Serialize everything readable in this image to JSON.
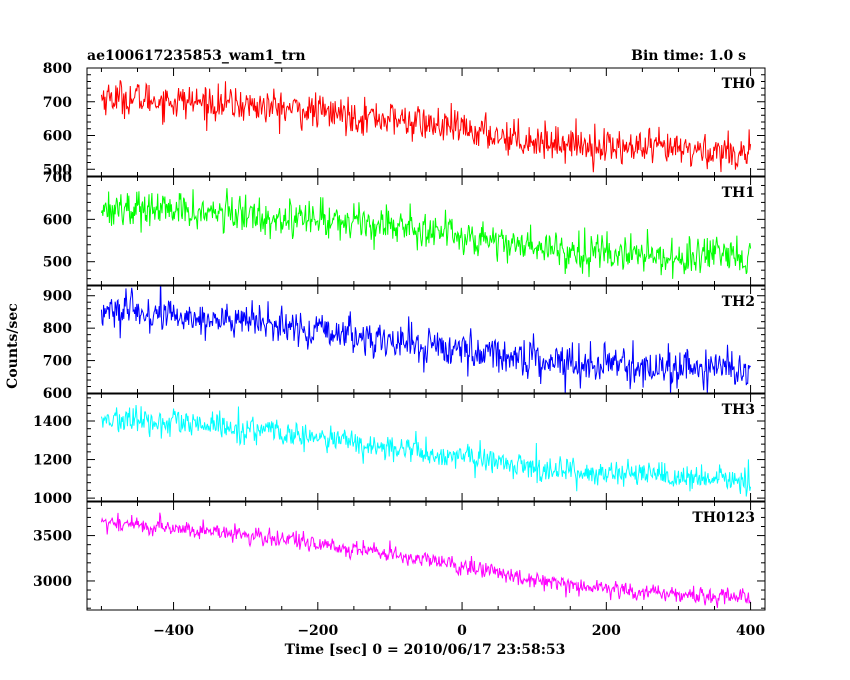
{
  "chart_data": {
    "type": "line",
    "title": "ae100617235853_wam1_trn",
    "subtitle": "Bin time: 1.0 s",
    "xlabel": "Time [sec] 0 = 2010/06/17 23:58:53",
    "ylabel": "Counts/sec",
    "xlim": [
      -520,
      420
    ],
    "xticks": [
      -400,
      -200,
      0,
      200,
      400
    ],
    "x_data_range": [
      -500,
      400
    ],
    "bin": 1.0,
    "grid": false,
    "panels": [
      {
        "name": "TH0",
        "color": "#ff0000",
        "ylim": [
          480,
          800
        ],
        "yticks": [
          500,
          600,
          700,
          800
        ],
        "trend": [
          {
            "x": -500,
            "y": 715
          },
          {
            "x": -300,
            "y": 690
          },
          {
            "x": -100,
            "y": 650
          },
          {
            "x": 100,
            "y": 585
          },
          {
            "x": 250,
            "y": 560
          },
          {
            "x": 400,
            "y": 550
          }
        ],
        "noise": 30
      },
      {
        "name": "TH1",
        "color": "#00ff00",
        "ylim": [
          445,
          700
        ],
        "yticks": [
          500,
          600,
          700
        ],
        "trend": [
          {
            "x": -500,
            "y": 630
          },
          {
            "x": -300,
            "y": 610
          },
          {
            "x": -100,
            "y": 590
          },
          {
            "x": 100,
            "y": 535
          },
          {
            "x": 250,
            "y": 515
          },
          {
            "x": 400,
            "y": 505
          }
        ],
        "noise": 25
      },
      {
        "name": "TH2",
        "color": "#0000ff",
        "ylim": [
          600,
          930
        ],
        "yticks": [
          600,
          700,
          800,
          900
        ],
        "trend": [
          {
            "x": -500,
            "y": 855
          },
          {
            "x": -300,
            "y": 820
          },
          {
            "x": -100,
            "y": 760
          },
          {
            "x": 100,
            "y": 705
          },
          {
            "x": 250,
            "y": 680
          },
          {
            "x": 400,
            "y": 670
          }
        ],
        "noise": 32
      },
      {
        "name": "TH3",
        "color": "#00ffff",
        "ylim": [
          985,
          1540
        ],
        "yticks": [
          1000,
          1200,
          1400
        ],
        "trend": [
          {
            "x": -500,
            "y": 1410
          },
          {
            "x": -300,
            "y": 1360
          },
          {
            "x": -100,
            "y": 1260
          },
          {
            "x": 100,
            "y": 1160
          },
          {
            "x": 250,
            "y": 1110
          },
          {
            "x": 400,
            "y": 1090
          }
        ],
        "noise": 40
      },
      {
        "name": "TH0123",
        "color": "#ff00ff",
        "ylim": [
          2680,
          3870
        ],
        "yticks": [
          3000,
          3500
        ],
        "trend": [
          {
            "x": -500,
            "y": 3650
          },
          {
            "x": -300,
            "y": 3510
          },
          {
            "x": -100,
            "y": 3300
          },
          {
            "x": 100,
            "y": 3020
          },
          {
            "x": 250,
            "y": 2870
          },
          {
            "x": 400,
            "y": 2820
          }
        ],
        "noise": 55
      }
    ]
  }
}
